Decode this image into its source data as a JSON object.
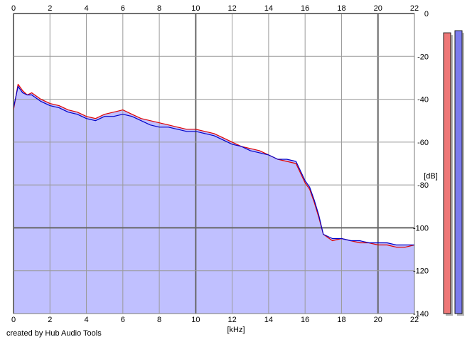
{
  "footer": {
    "credit": "created by Hub Audio Tools"
  },
  "chart_data": {
    "type": "area",
    "xlabel": "[kHz]",
    "ylabel": "[dB]",
    "xlim": [
      0,
      22
    ],
    "ylim": [
      -140,
      0
    ],
    "x_ticks": [
      "0",
      "2",
      "4",
      "6",
      "8",
      "10",
      "12",
      "14",
      "16",
      "18",
      "20",
      "22"
    ],
    "y_ticks": [
      "0",
      "-20",
      "-40",
      "-60",
      "-80",
      "-100",
      "-120",
      "-140"
    ],
    "grid": true,
    "colors": {
      "left_line": "#e00000",
      "right_line": "#0000c8",
      "fill": "#c0c0ff",
      "left_meter": "#ee7777",
      "right_meter": "#7b7bee",
      "grid": "#9a9a9a",
      "grid_major": "#666666"
    },
    "series": [
      {
        "channel": "left",
        "color": "#e00000",
        "x": [
          0,
          0.25,
          0.5,
          0.75,
          1,
          1.5,
          2,
          2.5,
          3,
          3.5,
          4,
          4.5,
          5,
          5.5,
          6,
          6.5,
          7,
          7.5,
          8,
          8.5,
          9,
          9.5,
          10,
          10.5,
          11,
          11.5,
          12,
          12.5,
          13,
          13.5,
          14,
          14.5,
          15,
          15.5,
          16,
          16.25,
          16.5,
          16.75,
          17,
          17.5,
          18,
          18.5,
          19,
          19.5,
          20,
          20.5,
          21,
          21.5,
          22
        ],
        "values": [
          -45,
          -33,
          -36,
          -38,
          -37,
          -40,
          -42,
          -43,
          -45,
          -46,
          -48,
          -49,
          -47,
          -46,
          -45,
          -47,
          -49,
          -50,
          -51,
          -52,
          -53,
          -54,
          -54,
          -55,
          -56,
          -58,
          -60,
          -62,
          -63,
          -64,
          -66,
          -68,
          -69,
          -70,
          -79,
          -82,
          -88,
          -95,
          -103,
          -106,
          -105,
          -106,
          -107,
          -107,
          -108,
          -108,
          -109,
          -109,
          -108
        ]
      },
      {
        "channel": "right",
        "color": "#0000c8",
        "x": [
          0,
          0.25,
          0.5,
          0.75,
          1,
          1.5,
          2,
          2.5,
          3,
          3.5,
          4,
          4.5,
          5,
          5.5,
          6,
          6.5,
          7,
          7.5,
          8,
          8.5,
          9,
          9.5,
          10,
          10.5,
          11,
          11.5,
          12,
          12.5,
          13,
          13.5,
          14,
          14.5,
          15,
          15.5,
          16,
          16.25,
          16.5,
          16.75,
          17,
          17.5,
          18,
          18.5,
          19,
          19.5,
          20,
          20.5,
          21,
          21.5,
          22
        ],
        "values": [
          -44,
          -34,
          -37,
          -38,
          -38,
          -41,
          -43,
          -44,
          -46,
          -47,
          -49,
          -50,
          -48,
          -48,
          -47,
          -48,
          -50,
          -52,
          -53,
          -53,
          -54,
          -55,
          -55,
          -56,
          -57,
          -59,
          -61,
          -62,
          -64,
          -65,
          -66,
          -68,
          -68,
          -69,
          -78,
          -81,
          -87,
          -94,
          -103,
          -105,
          -105,
          -106,
          -106,
          -107,
          -107,
          -107,
          -108,
          -108,
          -108
        ]
      }
    ],
    "meters": {
      "left": -9,
      "right": -8
    }
  }
}
